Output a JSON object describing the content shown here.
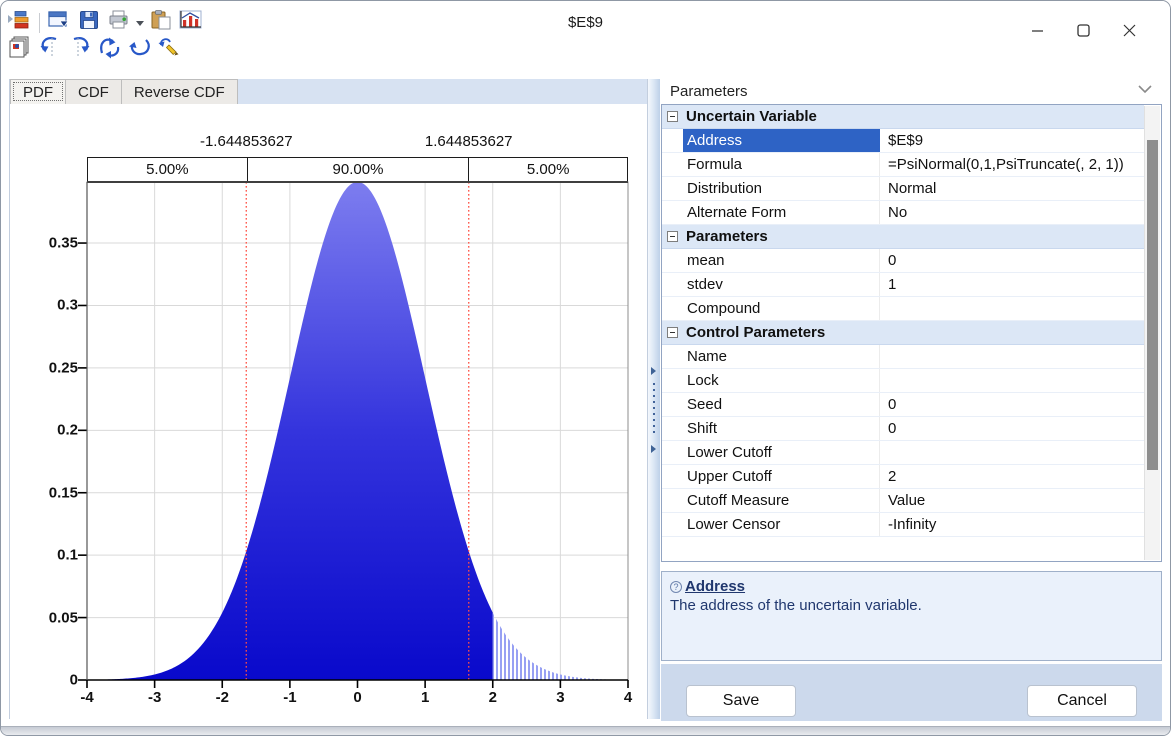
{
  "window": {
    "title": "$E$9",
    "controls": [
      "minimize-button",
      "maximize-button",
      "close-button"
    ]
  },
  "toolbar": {
    "row1": [
      "app-distribution-icon",
      "export-window-icon",
      "save-icon",
      "print-icon",
      "print-dropdown-caret",
      "paste-icon",
      "chart-icon"
    ],
    "row2": [
      "copy-chart-icon",
      "flip-left-icon",
      "flip-right-icon",
      "flip-vertical-icon",
      "rotate-icon",
      "undo-edit-icon"
    ]
  },
  "tabs": [
    {
      "label": "PDF",
      "active": true
    },
    {
      "label": "CDF",
      "active": false
    },
    {
      "label": "Reverse CDF",
      "active": false
    }
  ],
  "chart_data": {
    "type": "area",
    "subtype": "probability-density",
    "distribution": "Normal",
    "mean": 0,
    "stdev": 1,
    "upper_cutoff": 2,
    "x_range": [
      -4,
      4
    ],
    "y_range": [
      0,
      0.3989
    ],
    "x_ticks": [
      -4,
      -3,
      -2,
      -1,
      0,
      1,
      2,
      3,
      4
    ],
    "y_ticks": [
      0,
      0.05,
      0.1,
      0.15,
      0.2,
      0.25,
      0.3,
      0.35
    ],
    "grid": true,
    "legend": false,
    "percentile_lines": {
      "lower": -1.644853627,
      "upper": 1.644853627,
      "lower_label": "-1.644853627",
      "upper_label": "1.644853627"
    },
    "bands": [
      {
        "label": "5.00%",
        "from": -4,
        "to": -1.644853627
      },
      {
        "label": "90.00%",
        "from": -1.644853627,
        "to": 1.644853627
      },
      {
        "label": "5.00%",
        "from": 1.644853627,
        "to": 4
      }
    ],
    "colors": {
      "curve_top": "#7d7def",
      "curve_mid": "#3434dd",
      "curve_bottom": "#0909cb",
      "tail_hatch": "#97a0f3",
      "percentile_line": "#ff5043",
      "gridline": "#d9d9d9"
    }
  },
  "parameters_panel": {
    "header": "Parameters",
    "sections": [
      {
        "title": "Uncertain Variable",
        "rows": [
          {
            "label": "Address",
            "value": "$E$9",
            "selected": true
          },
          {
            "label": "Formula",
            "value": "=PsiNormal(0,1,PsiTruncate(, 2, 1))"
          },
          {
            "label": "Distribution",
            "value": "Normal"
          },
          {
            "label": "Alternate Form",
            "value": "No"
          }
        ]
      },
      {
        "title": "Parameters",
        "rows": [
          {
            "label": "mean",
            "value": "0"
          },
          {
            "label": "stdev",
            "value": "1"
          },
          {
            "label": "Compound",
            "value": ""
          }
        ]
      },
      {
        "title": "Control Parameters",
        "rows": [
          {
            "label": "Name",
            "value": ""
          },
          {
            "label": "Lock",
            "value": ""
          },
          {
            "label": "Seed",
            "value": "0"
          },
          {
            "label": "Shift",
            "value": "0"
          },
          {
            "label": "Lower Cutoff",
            "value": ""
          },
          {
            "label": "Upper Cutoff",
            "value": "2"
          },
          {
            "label": "Cutoff Measure",
            "value": "Value"
          },
          {
            "label": "Lower Censor",
            "value": "-Infinity"
          }
        ]
      }
    ],
    "help": {
      "title": "Address",
      "text": "The address of the uncertain variable."
    },
    "save_label": "Save",
    "cancel_label": "Cancel"
  },
  "colors": {
    "selection_blue": "#2e63c5",
    "group_header_bg": "#dce7f6",
    "tab_strip_bg": "#d7e2f2",
    "button_strip_bg": "#ccd9ec",
    "help_bg": "#eaf1fb",
    "help_text": "#20376e"
  }
}
